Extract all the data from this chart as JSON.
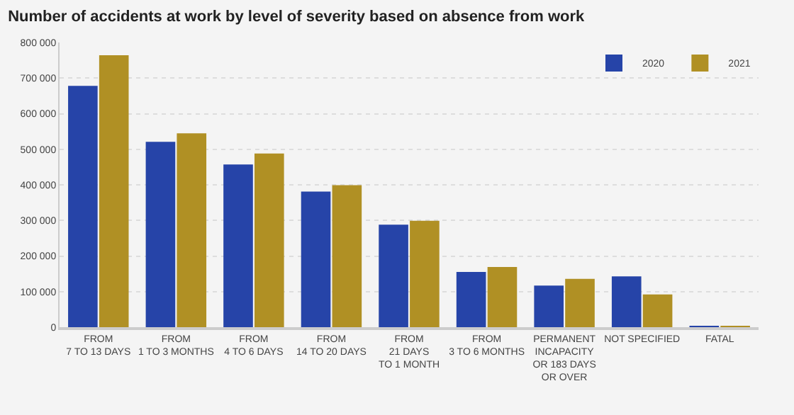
{
  "chart_data": {
    "type": "bar",
    "title": "Number of accidents at work by level of severity based on absence from work",
    "categories": [
      "FROM\n7 TO 13 DAYS",
      "FROM\n1 TO 3 MONTHS",
      "FROM\n4 TO 6 DAYS",
      "FROM\n14 TO 20 DAYS",
      "FROM\n21 DAYS\nTO 1 MONTH",
      "FROM\n3 TO 6 MONTHS",
      "PERMANENT\nINCAPACITY\nOR 183 DAYS\nOR OVER",
      "NOT SPECIFIED",
      "FATAL"
    ],
    "series": [
      {
        "name": "2020",
        "color": "#2644a8",
        "values": [
          678000,
          521000,
          457000,
          381000,
          288000,
          155000,
          117000,
          143000,
          3000
        ]
      },
      {
        "name": "2021",
        "color": "#b09024",
        "values": [
          764000,
          545000,
          488000,
          399000,
          299000,
          169000,
          136000,
          92000,
          3000
        ]
      }
    ],
    "ylim": [
      0,
      800000
    ],
    "yticks": [
      0,
      {
        "value": 100000,
        "label": "100 000"
      },
      {
        "value": 200000,
        "label": "200 000"
      },
      {
        "value": 300000,
        "label": "300 000"
      },
      {
        "value": 400000,
        "label": "400 000"
      },
      {
        "value": 500000,
        "label": "500 000"
      },
      {
        "value": 600000,
        "label": "600 000"
      },
      {
        "value": 700000,
        "label": "700 000"
      },
      {
        "value": 800000,
        "label": "800 000"
      }
    ],
    "grid": "y",
    "legend": "top right"
  }
}
